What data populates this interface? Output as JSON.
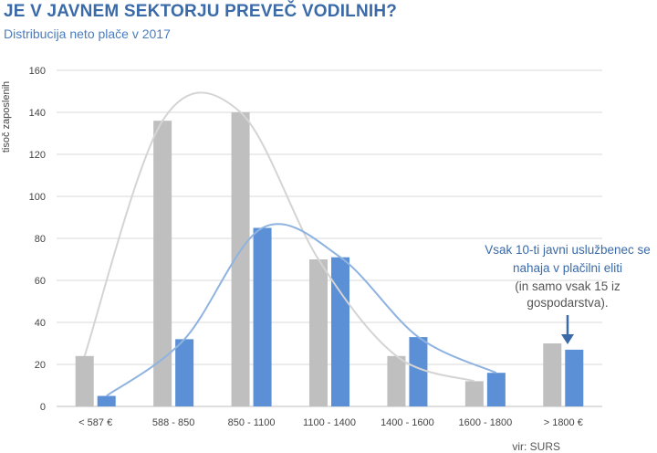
{
  "title": "JE V JAVNEM SEKTORJU PREVEČ VODILNIH?",
  "subtitle": "Distribucija neto plače v 2017",
  "source": "vir: SURS",
  "colors": {
    "title": "#3a6aa8",
    "grey_series": "#bfbfbf",
    "blue_series": "#5b8fd6",
    "grid": "#d9d9d9",
    "annotation": "#3a6aa8"
  },
  "annotation": {
    "line1": "Vsak 10-ti javni uslužbenec se",
    "line2": "nahaja v plačilni eliti",
    "line3": "(in samo vsak 15 iz",
    "line4": "gospodarstva)."
  },
  "chart_data": {
    "type": "bar",
    "ylabel": "tisoč zaposlenih",
    "xlabel": "",
    "ylim": [
      0,
      160
    ],
    "yticks": [
      0,
      20,
      40,
      60,
      80,
      100,
      120,
      140,
      160
    ],
    "grid": true,
    "categories": [
      "< 587 €",
      "588 - 850",
      "850 - 1100",
      "1100 - 1400",
      "1400 - 1600",
      "1600 - 1800",
      "> 1800 €"
    ],
    "series": [
      {
        "color": "#bfbfbf",
        "values": [
          24,
          136,
          140,
          70,
          24,
          12,
          30
        ]
      },
      {
        "color": "#5b8fd6",
        "values": [
          5,
          32,
          85,
          71,
          33,
          16,
          27
        ]
      }
    ]
  }
}
